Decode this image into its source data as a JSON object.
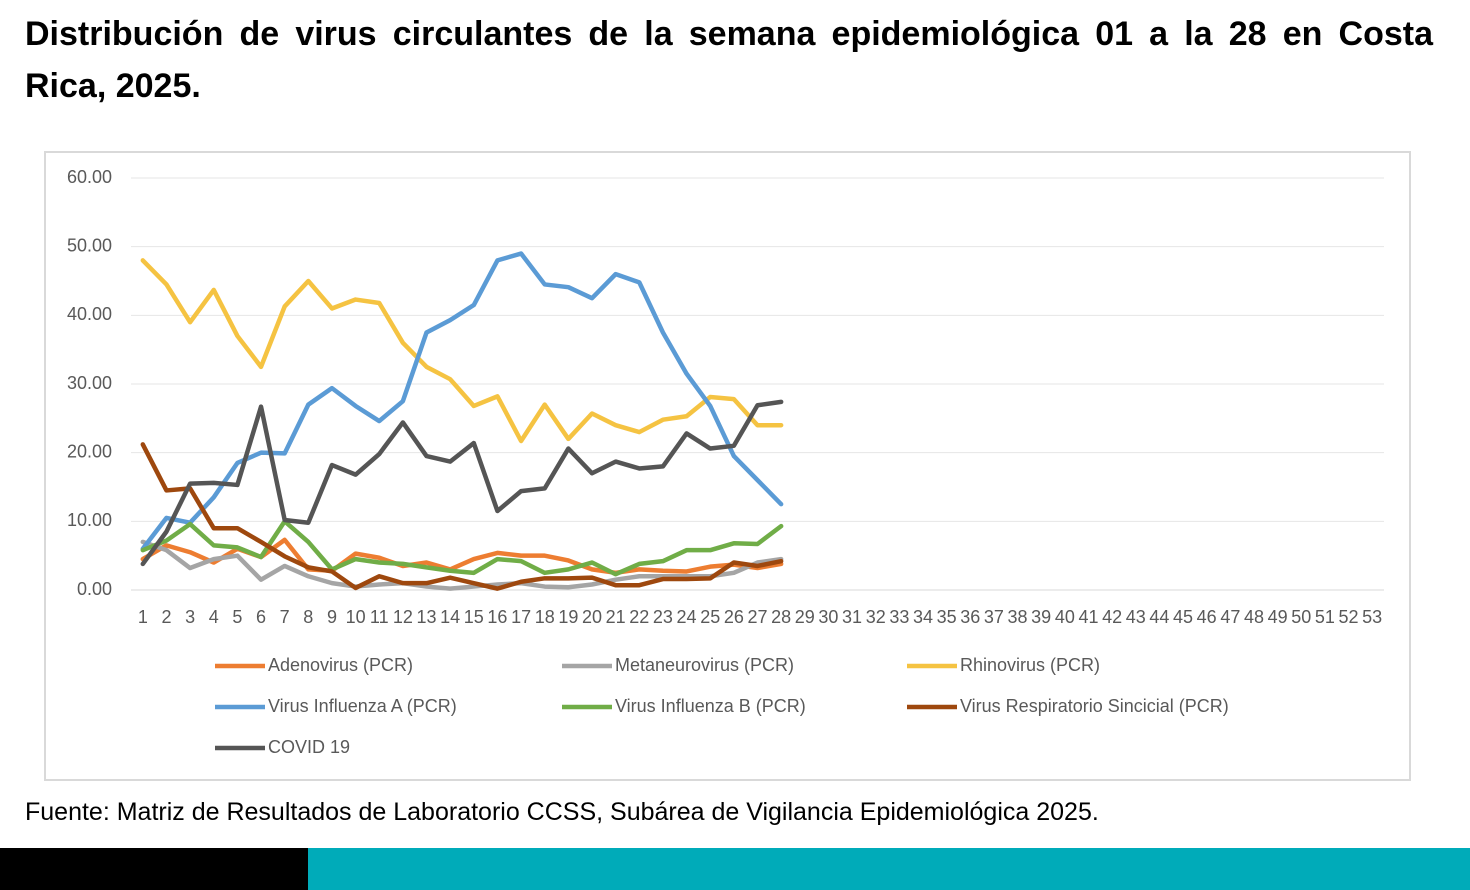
{
  "title": "Distribución de virus circulantes de la semana epidemiológica 01 a la 28 en Costa Rica, 2025.",
  "source": "Fuente: Matriz de Resultados de Laboratorio CCSS, Subárea de Vigilancia Epidemiológica 2025.",
  "chart_data": {
    "type": "line",
    "categories": [
      "1",
      "2",
      "3",
      "4",
      "5",
      "6",
      "7",
      "8",
      "9",
      "10",
      "11",
      "12",
      "13",
      "14",
      "15",
      "16",
      "17",
      "18",
      "19",
      "20",
      "21",
      "22",
      "23",
      "24",
      "25",
      "26",
      "27",
      "28",
      "29",
      "30",
      "31",
      "32",
      "33",
      "34",
      "35",
      "36",
      "37",
      "38",
      "39",
      "40",
      "41",
      "42",
      "43",
      "44",
      "45",
      "46",
      "47",
      "48",
      "49",
      "50",
      "51",
      "52",
      "53"
    ],
    "ylim": [
      0,
      60
    ],
    "yticks": [
      {
        "value": 0,
        "label": "0.00"
      },
      {
        "value": 10,
        "label": "10.00"
      },
      {
        "value": 20,
        "label": "20.00"
      },
      {
        "value": 30,
        "label": "30.00"
      },
      {
        "value": 40,
        "label": "40.00"
      },
      {
        "value": 50,
        "label": "50.00"
      },
      {
        "value": 60,
        "label": "60.00"
      }
    ],
    "grid": true,
    "series": [
      {
        "name": "Adenovirus (PCR)",
        "color": "#ed7d31",
        "values": [
          4.5,
          6.5,
          5.5,
          4,
          6,
          4.8,
          7.3,
          3,
          2.8,
          5.3,
          4.7,
          3.5,
          4,
          3,
          4.5,
          5.4,
          5,
          5,
          4.3,
          3,
          2.5,
          3,
          2.8,
          2.7,
          3.4,
          3.7,
          3.2,
          3.8,
          null,
          null,
          null,
          null,
          null,
          null,
          null,
          null,
          null,
          null,
          null,
          null,
          null,
          null,
          null,
          null,
          null,
          null,
          null,
          null,
          null,
          null,
          null,
          null,
          null
        ]
      },
      {
        "name": "Metaneurovirus (PCR)",
        "color": "#a5a5a5",
        "values": [
          7,
          5.8,
          3.2,
          4.5,
          5,
          1.5,
          3.5,
          2,
          1,
          0.5,
          0.8,
          1,
          0.5,
          0.2,
          0.5,
          0.8,
          1,
          0.5,
          0.4,
          0.8,
          1.5,
          2,
          2,
          2,
          2,
          2.5,
          4,
          4.5,
          null,
          null,
          null,
          null,
          null,
          null,
          null,
          null,
          null,
          null,
          null,
          null,
          null,
          null,
          null,
          null,
          null,
          null,
          null,
          null,
          null,
          null,
          null,
          null,
          null
        ]
      },
      {
        "name": "Rhinovirus (PCR)",
        "color": "#f5c342",
        "values": [
          48,
          44.5,
          39,
          43.7,
          37,
          32.5,
          41.3,
          45,
          41,
          42.3,
          41.8,
          36,
          32.5,
          30.7,
          26.8,
          28.2,
          21.7,
          27,
          22,
          25.7,
          24,
          23,
          24.8,
          25.3,
          28.1,
          27.8,
          24,
          24,
          null,
          null,
          null,
          null,
          null,
          null,
          null,
          null,
          null,
          null,
          null,
          null,
          null,
          null,
          null,
          null,
          null,
          null,
          null,
          null,
          null,
          null,
          null,
          null,
          null
        ]
      },
      {
        "name": "Virus Influenza A (PCR)",
        "color": "#5b9bd5",
        "values": [
          6,
          10.5,
          9.8,
          13.5,
          18.5,
          20,
          19.9,
          27,
          29.4,
          26.8,
          24.6,
          27.5,
          37.5,
          39.3,
          41.5,
          48,
          49,
          44.5,
          44.1,
          42.5,
          46,
          44.8,
          37.5,
          31.5,
          26.8,
          19.5,
          16,
          12.5,
          null,
          null,
          null,
          null,
          null,
          null,
          null,
          null,
          null,
          null,
          null,
          null,
          null,
          null,
          null,
          null,
          null,
          null,
          null,
          null,
          null,
          null,
          null,
          null,
          null
        ]
      },
      {
        "name": "Virus Influenza B (PCR)",
        "color": "#70ad47",
        "values": [
          5.8,
          7.2,
          9.6,
          6.5,
          6.2,
          4.8,
          10,
          7,
          3,
          4.5,
          4,
          3.8,
          3.3,
          2.8,
          2.5,
          4.5,
          4.2,
          2.5,
          3,
          4,
          2.3,
          3.8,
          4.2,
          5.8,
          5.8,
          6.8,
          6.7,
          9.3,
          null,
          null,
          null,
          null,
          null,
          null,
          null,
          null,
          null,
          null,
          null,
          null,
          null,
          null,
          null,
          null,
          null,
          null,
          null,
          null,
          null,
          null,
          null,
          null,
          null
        ]
      },
      {
        "name": "Virus Respiratorio Sincicial (PCR)",
        "color": "#9e480e",
        "values": [
          21.2,
          14.5,
          14.8,
          9,
          9,
          7,
          4.9,
          3.3,
          2.7,
          0.3,
          2,
          1,
          1,
          1.8,
          1,
          0.2,
          1.2,
          1.7,
          1.7,
          1.8,
          0.7,
          0.7,
          1.6,
          1.6,
          1.7,
          4,
          3.5,
          4.2,
          null,
          null,
          null,
          null,
          null,
          null,
          null,
          null,
          null,
          null,
          null,
          null,
          null,
          null,
          null,
          null,
          null,
          null,
          null,
          null,
          null,
          null,
          null,
          null,
          null
        ]
      },
      {
        "name": "COVID 19",
        "color": "#555555",
        "values": [
          3.8,
          8.5,
          15.5,
          15.6,
          15.3,
          26.7,
          10.2,
          9.8,
          18.2,
          16.8,
          19.8,
          24.4,
          19.5,
          18.7,
          21.4,
          11.5,
          14.4,
          14.8,
          20.6,
          17,
          18.7,
          17.7,
          18,
          22.8,
          20.6,
          21,
          26.9,
          27.4,
          null,
          null,
          null,
          null,
          null,
          null,
          null,
          null,
          null,
          null,
          null,
          null,
          null,
          null,
          null,
          null,
          null,
          null,
          null,
          null,
          null,
          null,
          null,
          null,
          null
        ]
      }
    ]
  }
}
